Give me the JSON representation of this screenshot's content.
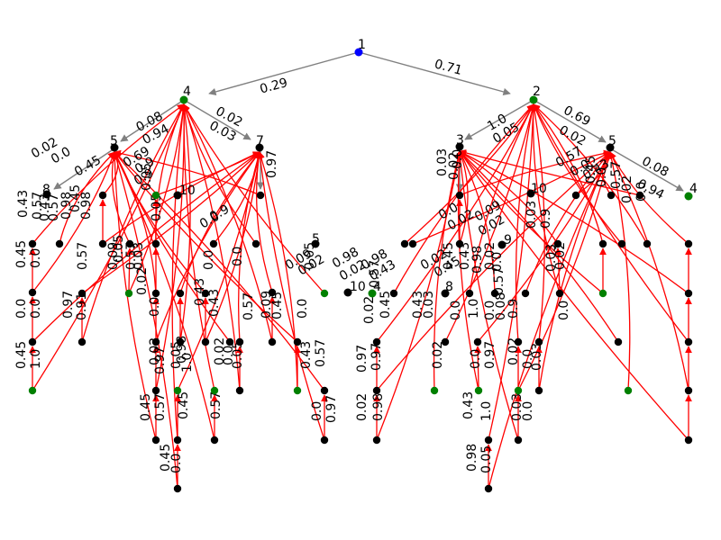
{
  "colors": {
    "root_node": "#0000ff",
    "leaf_node": "#008000",
    "inner_node": "#000000",
    "tree_edge": "#808080",
    "back_edge": "#ff0000"
  },
  "nodes": {
    "root": "1",
    "a": "4",
    "b": "2",
    "a5": "5",
    "a7": "7",
    "b3": "3",
    "b5": "5",
    "l8": "8",
    "l10": "10",
    "lr5": "5",
    "lr10": "10",
    "r10": "10",
    "r4": "4",
    "rl4": "4",
    "rl8": "8",
    "rl9": "9"
  },
  "edges": {
    "root_a": "0.29",
    "root_b": "0.71",
    "a_a5": "0.08",
    "a5_back": "0.94",
    "a_a7": "0.02",
    "a7_back": "0.03",
    "a7_down": "0.97",
    "b_b3": "1.0",
    "b3_back": "0.05",
    "b_b5": "0.69",
    "b5_back": "0.02",
    "b5_b4": "0.08",
    "b4_back": "0.94"
  },
  "small_labels": [
    "0.02",
    "0.0",
    "0.45",
    "0.69",
    "0.9",
    "0.9",
    "0.05",
    "0.43",
    "0.57",
    "0.43",
    "0.57",
    "0.98",
    "0.45",
    "0.98",
    "0.45",
    "0.0",
    "0.57",
    "0.09",
    "0.05",
    "0.57",
    "0.05",
    "0.0",
    "0.0",
    "0.97",
    "0.91",
    "0.03",
    "0.02",
    "0.0",
    "0.45",
    "1.0",
    "0.02",
    "0.97",
    "0.98",
    "0.05",
    "1.0",
    "0.0",
    "0.9",
    "0.43",
    "0.0",
    "0.43",
    "0.02",
    "0.0",
    "0.45",
    "0.57",
    "0.45",
    "0.57",
    "0.45",
    "0.0",
    "0.05",
    "0.0",
    "0.57",
    "0.09",
    "0.45",
    "0.09",
    "0.02",
    "0.0",
    "0.05",
    "0.98",
    "0.02",
    "0.43",
    "0.57",
    "0.0",
    "0.97",
    "0.98",
    "0.43",
    "0.57",
    "0.45",
    "0.02",
    "0.97",
    "0.97",
    "0.02",
    "0.98",
    "0.43",
    "0.03",
    "0.02",
    "0.02",
    "0.45",
    "0.03",
    "0.02",
    "0.0",
    "0.0",
    "0.02",
    "0.09",
    "0.02",
    "0.45",
    "0.43",
    "0.98",
    "0.02",
    "0.0",
    "0.57",
    "0.9",
    "0.0",
    "1.0",
    "0.0",
    "0.08",
    "0.0",
    "0.97",
    "0.02",
    "0.0",
    "0.03",
    "0.43",
    "1.0",
    "0.03",
    "0.0",
    "0.98",
    "0.05",
    "0.03",
    "0.9",
    "0.03",
    "0.02",
    "0.0",
    "0.57",
    "0.0",
    "0.43",
    "0.45",
    "0.0",
    "0.57"
  ]
}
